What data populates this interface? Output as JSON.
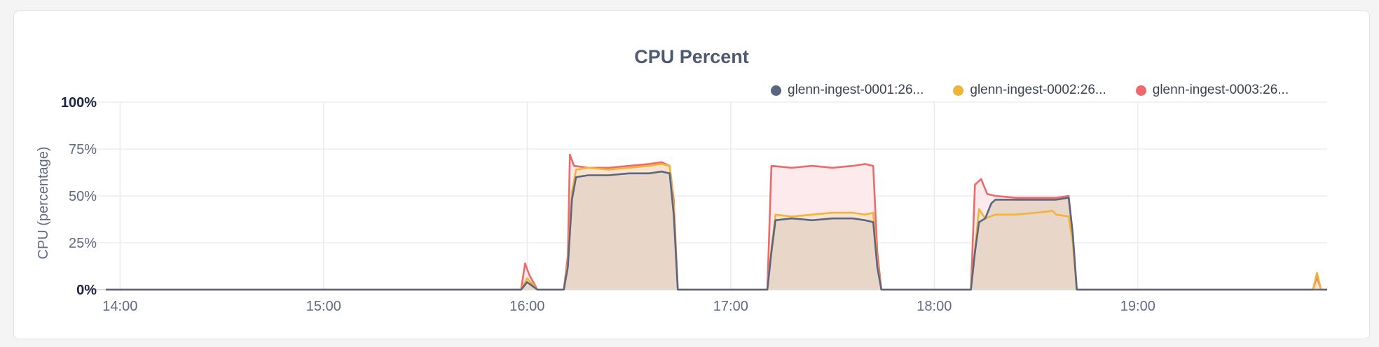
{
  "chart_data": {
    "type": "area",
    "title": "CPU Percent",
    "ylabel": "CPU (percentage)",
    "xlabel": "",
    "ylim": [
      0,
      100
    ],
    "y_ticks": [
      "0%",
      "25%",
      "50%",
      "75%",
      "100%"
    ],
    "x_ticks": [
      "14:00",
      "15:00",
      "16:00",
      "17:00",
      "18:00",
      "19:00"
    ],
    "x_range_hours": [
      13.93,
      19.93
    ],
    "grid": true,
    "legend_position": "top-right",
    "series": [
      {
        "name": "glenn-ingest-0001:26...",
        "color": "#5b6580",
        "fill": "#e6d4c7",
        "points": [
          [
            13.93,
            0
          ],
          [
            15.97,
            0
          ],
          [
            16.0,
            4
          ],
          [
            16.05,
            0
          ],
          [
            16.18,
            0
          ],
          [
            16.2,
            12
          ],
          [
            16.22,
            48
          ],
          [
            16.24,
            60
          ],
          [
            16.3,
            61
          ],
          [
            16.4,
            61
          ],
          [
            16.5,
            62
          ],
          [
            16.6,
            62
          ],
          [
            16.66,
            63
          ],
          [
            16.7,
            62
          ],
          [
            16.72,
            40
          ],
          [
            16.74,
            0
          ],
          [
            17.18,
            0
          ],
          [
            17.2,
            20
          ],
          [
            17.22,
            37
          ],
          [
            17.3,
            38
          ],
          [
            17.4,
            37
          ],
          [
            17.5,
            38
          ],
          [
            17.6,
            38
          ],
          [
            17.66,
            37
          ],
          [
            17.7,
            36
          ],
          [
            17.72,
            12
          ],
          [
            17.74,
            0
          ],
          [
            18.1,
            0
          ],
          [
            18.18,
            0
          ],
          [
            18.2,
            20
          ],
          [
            18.22,
            36
          ],
          [
            18.25,
            38
          ],
          [
            18.28,
            46
          ],
          [
            18.3,
            48
          ],
          [
            18.4,
            48
          ],
          [
            18.5,
            48
          ],
          [
            18.6,
            48
          ],
          [
            18.66,
            49
          ],
          [
            18.68,
            30
          ],
          [
            18.7,
            0
          ],
          [
            19.93,
            0
          ]
        ]
      },
      {
        "name": "glenn-ingest-0002:26...",
        "color": "#f2b33a",
        "fill": "#f6e3cc",
        "points": [
          [
            13.93,
            0
          ],
          [
            15.97,
            0
          ],
          [
            16.0,
            6
          ],
          [
            16.05,
            0
          ],
          [
            16.18,
            0
          ],
          [
            16.2,
            14
          ],
          [
            16.22,
            52
          ],
          [
            16.24,
            64
          ],
          [
            16.3,
            65
          ],
          [
            16.4,
            64
          ],
          [
            16.5,
            65
          ],
          [
            16.6,
            66
          ],
          [
            16.66,
            67
          ],
          [
            16.7,
            66
          ],
          [
            16.72,
            45
          ],
          [
            16.74,
            0
          ],
          [
            17.18,
            0
          ],
          [
            17.2,
            22
          ],
          [
            17.22,
            40
          ],
          [
            17.3,
            39
          ],
          [
            17.4,
            40
          ],
          [
            17.5,
            41
          ],
          [
            17.6,
            41
          ],
          [
            17.66,
            40
          ],
          [
            17.7,
            41
          ],
          [
            17.72,
            14
          ],
          [
            17.74,
            0
          ],
          [
            18.18,
            0
          ],
          [
            18.2,
            22
          ],
          [
            18.22,
            43
          ],
          [
            18.25,
            38
          ],
          [
            18.3,
            40
          ],
          [
            18.4,
            40
          ],
          [
            18.5,
            41
          ],
          [
            18.58,
            42
          ],
          [
            18.6,
            40
          ],
          [
            18.66,
            39
          ],
          [
            18.68,
            25
          ],
          [
            18.7,
            0
          ],
          [
            19.86,
            0
          ],
          [
            19.88,
            9
          ],
          [
            19.9,
            0
          ],
          [
            19.93,
            0
          ]
        ]
      },
      {
        "name": "glenn-ingest-0003:26...",
        "color": "#ee6a6a",
        "fill": "#fde8ea",
        "points": [
          [
            13.93,
            0
          ],
          [
            15.97,
            0
          ],
          [
            15.99,
            14
          ],
          [
            16.01,
            8
          ],
          [
            16.05,
            0
          ],
          [
            16.18,
            0
          ],
          [
            16.2,
            18
          ],
          [
            16.21,
            72
          ],
          [
            16.23,
            66
          ],
          [
            16.3,
            65
          ],
          [
            16.4,
            65
          ],
          [
            16.5,
            66
          ],
          [
            16.6,
            67
          ],
          [
            16.66,
            68
          ],
          [
            16.7,
            66
          ],
          [
            16.72,
            48
          ],
          [
            16.74,
            0
          ],
          [
            17.18,
            0
          ],
          [
            17.2,
            66
          ],
          [
            17.3,
            65
          ],
          [
            17.4,
            66
          ],
          [
            17.5,
            65
          ],
          [
            17.6,
            66
          ],
          [
            17.66,
            67
          ],
          [
            17.7,
            66
          ],
          [
            17.72,
            20
          ],
          [
            17.74,
            0
          ],
          [
            18.18,
            0
          ],
          [
            18.2,
            56
          ],
          [
            18.23,
            59
          ],
          [
            18.26,
            51
          ],
          [
            18.3,
            50
          ],
          [
            18.4,
            49
          ],
          [
            18.5,
            49
          ],
          [
            18.6,
            49
          ],
          [
            18.66,
            50
          ],
          [
            18.68,
            30
          ],
          [
            18.7,
            0
          ],
          [
            19.86,
            0
          ],
          [
            19.88,
            7
          ],
          [
            19.9,
            0
          ],
          [
            19.93,
            0
          ]
        ]
      }
    ]
  }
}
